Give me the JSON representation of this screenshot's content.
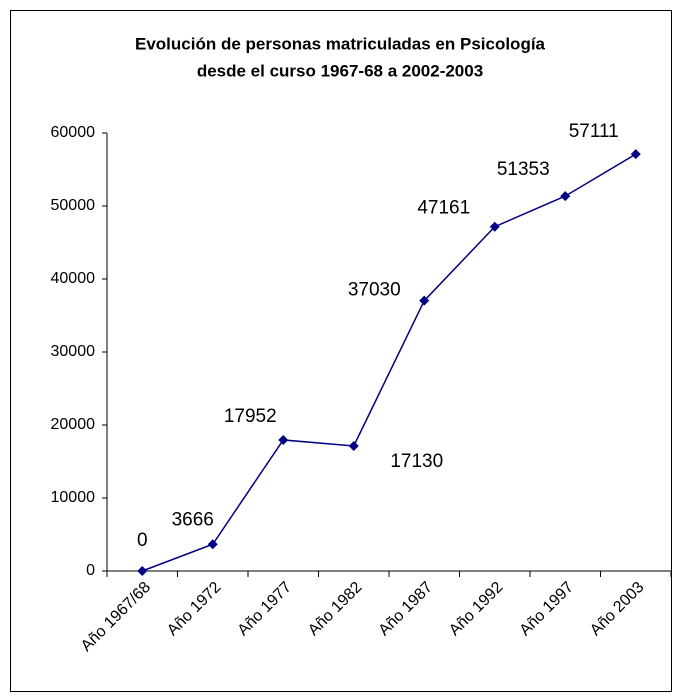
{
  "chart_data": {
    "type": "line",
    "title": [
      "Evolución de personas matriculadas en Psicología",
      "desde el curso 1967-68 a 2002-2003"
    ],
    "categories": [
      "Año 1967/68",
      "Año 1972",
      "Año 1977",
      "Año 1982",
      "Año 1987",
      "Año 1992",
      "Año 1997",
      "Año 2003"
    ],
    "series": [
      {
        "color": "#000080",
        "values": [
          0,
          3666,
          17952,
          17130,
          37030,
          47161,
          51353,
          57111
        ]
      }
    ],
    "ylim": [
      0,
      60000
    ],
    "yticks": [
      0,
      10000,
      20000,
      30000,
      40000,
      50000,
      60000
    ],
    "grid": false
  }
}
